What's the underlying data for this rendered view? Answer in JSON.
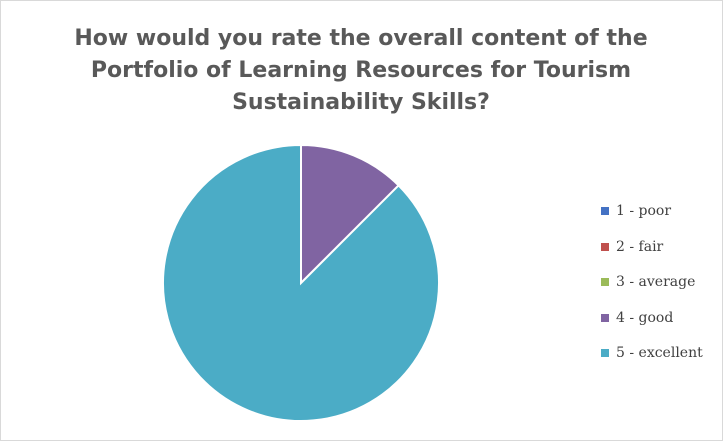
{
  "chart_data": {
    "type": "pie",
    "title": "How would you rate the overall content of the Portfolio of Learning Resources for Tourism Sustainability Skills?",
    "categories": [
      "1 - poor",
      "2 - fair",
      "3 - average",
      "4 - good",
      "5 - excellent"
    ],
    "values": [
      0,
      0,
      0,
      12.5,
      87.5
    ],
    "colors": [
      "#4472c4",
      "#c0504d",
      "#9bbb59",
      "#8064a2",
      "#4bacc6"
    ],
    "legend_position": "right"
  }
}
